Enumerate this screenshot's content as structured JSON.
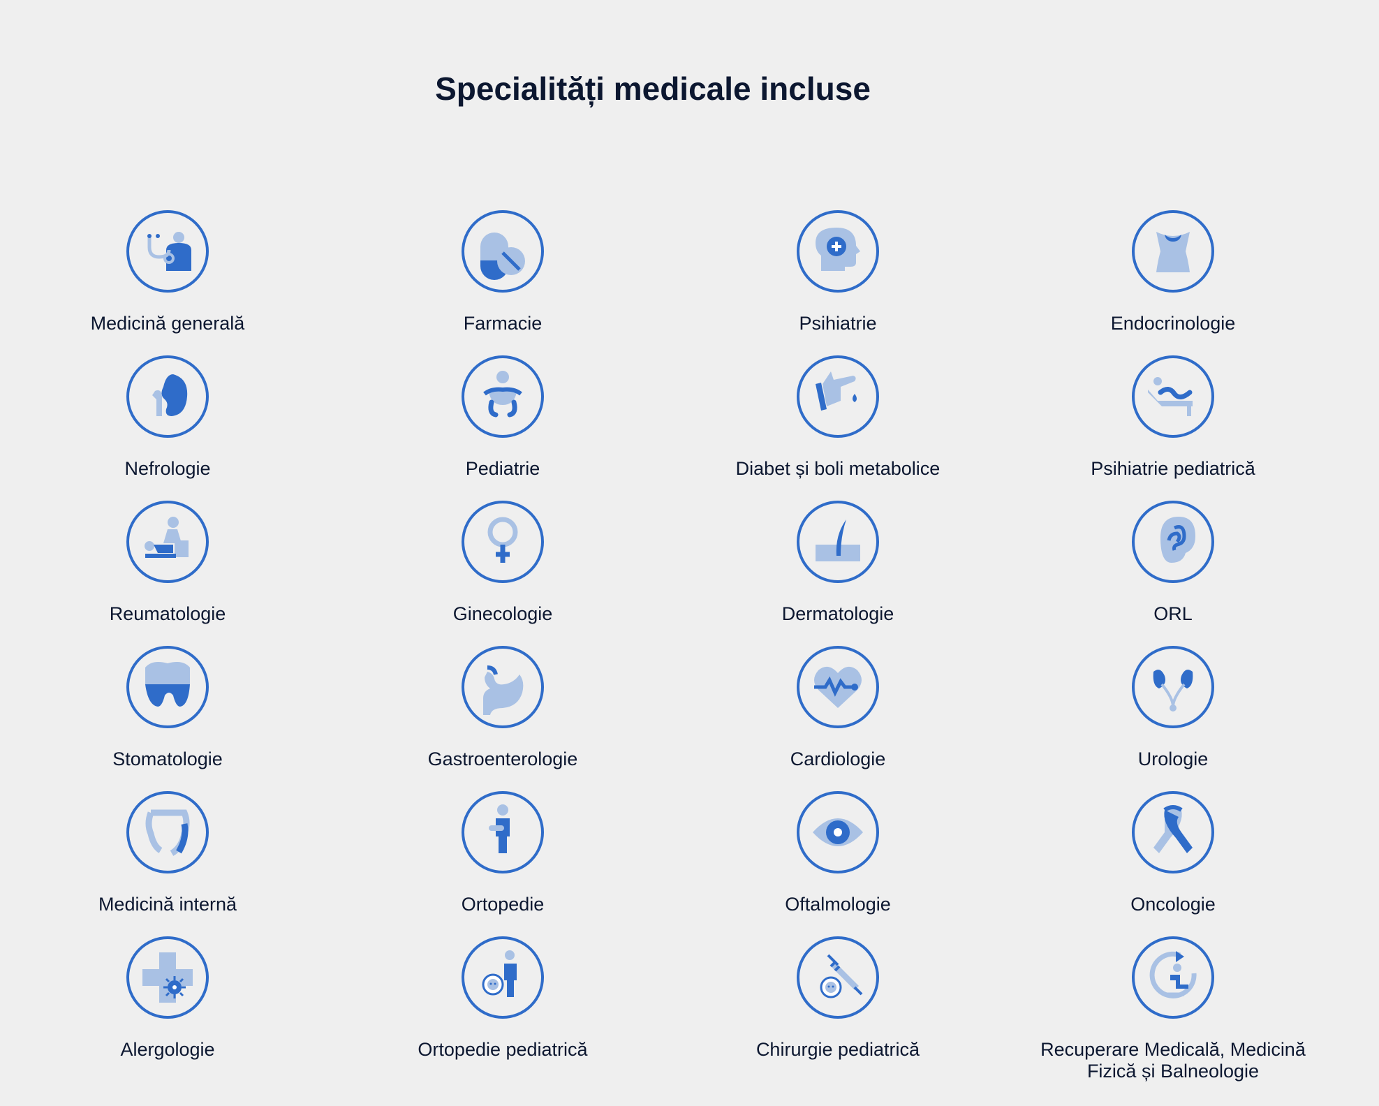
{
  "page": {
    "title": "Specialități medicale incluse"
  },
  "colors": {
    "accent": "#2f6cc9",
    "light": "#a9c1e4",
    "text": "#0c1730",
    "background": "#efefef"
  },
  "specialties": [
    {
      "label": "Medicină generală",
      "icon": "stethoscope-doctor-icon"
    },
    {
      "label": "Farmacie",
      "icon": "pills-icon"
    },
    {
      "label": "Psihiatrie",
      "icon": "head-plus-icon"
    },
    {
      "label": "Endocrinologie",
      "icon": "thyroid-neck-icon"
    },
    {
      "label": "Nefrologie",
      "icon": "kidney-icon"
    },
    {
      "label": "Pediatrie",
      "icon": "baby-icon"
    },
    {
      "label": "Diabet și boli metabolice",
      "icon": "glucose-finger-icon"
    },
    {
      "label": "Psihiatrie pediatrică",
      "icon": "patient-couch-icon"
    },
    {
      "label": "Reumatologie",
      "icon": "physiotherapy-icon"
    },
    {
      "label": "Ginecologie",
      "icon": "female-symbol-icon"
    },
    {
      "label": "Dermatologie",
      "icon": "skin-hair-icon"
    },
    {
      "label": "ORL",
      "icon": "ear-icon"
    },
    {
      "label": "Stomatologie",
      "icon": "tooth-icon"
    },
    {
      "label": "Gastroenterologie",
      "icon": "stomach-icon"
    },
    {
      "label": "Cardiologie",
      "icon": "heart-pulse-icon"
    },
    {
      "label": "Urologie",
      "icon": "urinary-system-icon"
    },
    {
      "label": "Medicină internă",
      "icon": "intestines-icon"
    },
    {
      "label": "Ortopedie",
      "icon": "person-arm-icon"
    },
    {
      "label": "Oftalmologie",
      "icon": "eye-icon"
    },
    {
      "label": "Oncologie",
      "icon": "awareness-ribbon-icon"
    },
    {
      "label": "Alergologie",
      "icon": "cross-virus-icon"
    },
    {
      "label": "Ortopedie pediatrică",
      "icon": "child-orthopedics-icon"
    },
    {
      "label": "Chirurgie pediatrică",
      "icon": "child-syringe-icon"
    },
    {
      "label": "Recuperare Medicală, Medicină Fizică și Balneologie",
      "icon": "rehabilitation-icon"
    }
  ]
}
